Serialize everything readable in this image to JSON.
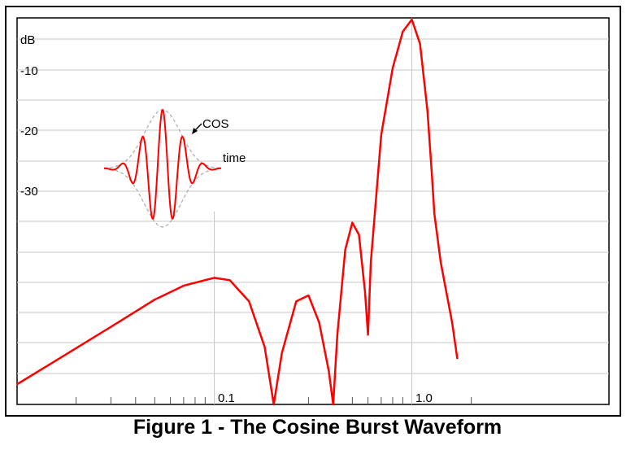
{
  "caption": "Figure 1 - The Cosine Burst Waveform",
  "chart_data": {
    "type": "line",
    "title": "",
    "ylabel": "dB",
    "ytick_labels": [
      "-10",
      "-20",
      "-30"
    ],
    "xtick_labels": [
      "0.1",
      "1.0"
    ],
    "x_scale": "log",
    "xlim": [
      0.01,
      2.0
    ],
    "ylim": [
      -65,
      0
    ],
    "grid": true,
    "line_color": "#ff0000",
    "series": [
      {
        "values": [
          [
            0.01,
            -60.2
          ],
          [
            0.015,
            -56.7
          ],
          [
            0.02,
            -54.2
          ],
          [
            0.03,
            -50.7
          ],
          [
            0.05,
            -46.2
          ],
          [
            0.07,
            -43.9
          ],
          [
            0.1,
            -42.6
          ],
          [
            0.12,
            -43.0
          ],
          [
            0.15,
            -46.5
          ],
          [
            0.18,
            -54.0
          ],
          [
            0.2,
            -65
          ],
          [
            0.22,
            -55.0
          ],
          [
            0.26,
            -46.5
          ],
          [
            0.3,
            -45.5
          ],
          [
            0.34,
            -50.0
          ],
          [
            0.38,
            -58.0
          ],
          [
            0.4,
            -65
          ],
          [
            0.42,
            -52.0
          ],
          [
            0.46,
            -38.0
          ],
          [
            0.5,
            -33.5
          ],
          [
            0.54,
            -35.5
          ],
          [
            0.58,
            -45.0
          ],
          [
            0.6,
            -52.0
          ],
          [
            0.62,
            -40.0
          ],
          [
            0.7,
            -19.0
          ],
          [
            0.8,
            -8.0
          ],
          [
            0.9,
            -2.0
          ],
          [
            1.0,
            0.0
          ],
          [
            1.1,
            -4.0
          ],
          [
            1.2,
            -15.0
          ],
          [
            1.26,
            -25.0
          ],
          [
            1.3,
            -32.0
          ],
          [
            1.4,
            -40.0
          ],
          [
            1.6,
            -50.0
          ],
          [
            1.7,
            -56.0
          ]
        ]
      }
    ],
    "inset": {
      "labels": [
        "COS",
        "time"
      ],
      "line_color": "#ff0000",
      "envelope_color": "#aaaaaa"
    }
  }
}
